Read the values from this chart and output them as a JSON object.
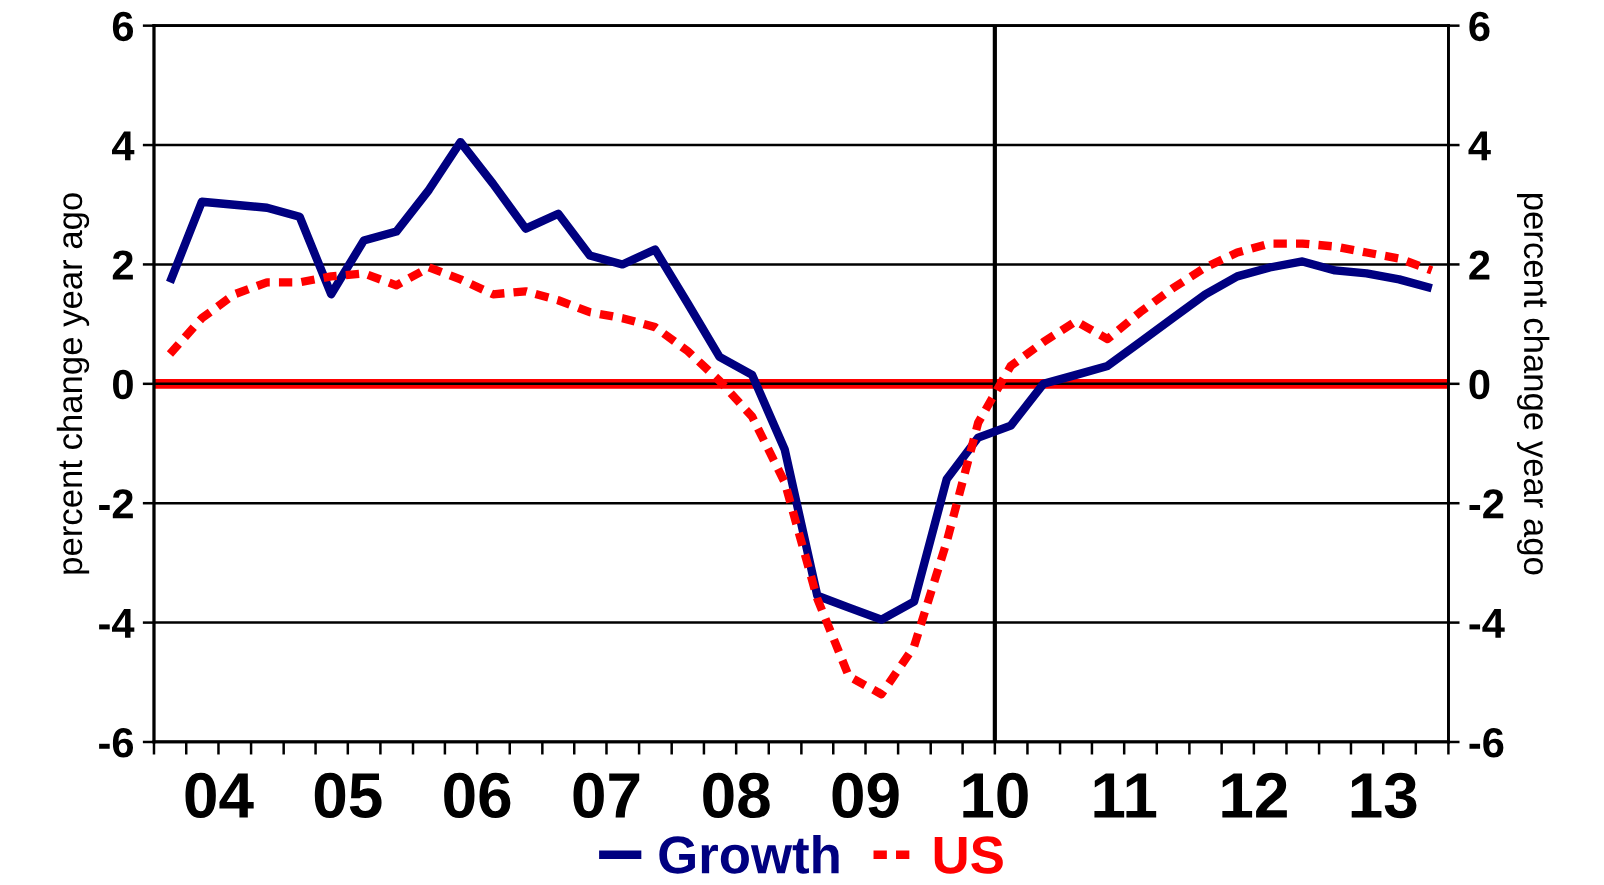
{
  "chart_data": {
    "type": "line",
    "ylabel": "percent change year ago",
    "y2label": "percent change year ago",
    "x": [
      "2004-02-15",
      "2004-05-15",
      "2004-08-15",
      "2004-11-15",
      "2005-02-15",
      "2005-05-15",
      "2005-08-15",
      "2005-11-15",
      "2006-02-15",
      "2006-05-15",
      "2006-08-15",
      "2006-11-15",
      "2007-02-15",
      "2007-05-15",
      "2007-08-15",
      "2007-11-15",
      "2008-02-15",
      "2008-05-15",
      "2008-08-15",
      "2008-11-15",
      "2009-02-15",
      "2009-05-15",
      "2009-08-15",
      "2009-11-15",
      "2010-02-15",
      "2010-05-15",
      "2010-08-15",
      "2010-11-15",
      "2011-02-15",
      "2011-05-15",
      "2011-08-15",
      "2011-11-15",
      "2012-02-15",
      "2012-05-15",
      "2012-08-15",
      "2012-11-15",
      "2013-02-15",
      "2013-05-15",
      "2013-08-15",
      "2013-11-15"
    ],
    "series": [
      {
        "name": "Growth",
        "color": "#000080",
        "line_style": "solid",
        "values": [
          1.7,
          3.05,
          3.0,
          2.95,
          2.8,
          1.5,
          2.4,
          2.55,
          3.25,
          4.05,
          3.35,
          2.6,
          2.85,
          2.15,
          2.0,
          2.25,
          1.35,
          0.45,
          0.15,
          -1.1,
          -3.55,
          -3.75,
          -3.95,
          -3.65,
          -1.6,
          -0.9,
          -0.7,
          0.0,
          0.15,
          0.3,
          0.7,
          1.1,
          1.5,
          1.8,
          1.95,
          2.05,
          1.9,
          1.85,
          1.75,
          1.6
        ]
      },
      {
        "name": "US",
        "color": "#ff0000",
        "line_style": "dotted",
        "values": [
          0.5,
          1.1,
          1.5,
          1.7,
          1.7,
          1.8,
          1.85,
          1.65,
          1.95,
          1.75,
          1.5,
          1.55,
          1.4,
          1.2,
          1.1,
          0.95,
          0.55,
          0.05,
          -0.55,
          -1.65,
          -3.6,
          -4.9,
          -5.2,
          -4.4,
          -2.65,
          -0.65,
          0.3,
          0.7,
          1.05,
          0.75,
          1.2,
          1.6,
          1.95,
          2.2,
          2.35,
          2.35,
          2.3,
          2.2,
          2.1,
          1.9
        ]
      }
    ],
    "xlim": [
      "2004-01-01",
      "2014-01-01"
    ],
    "xticks": [
      {
        "value": "2004-01-01",
        "label": null
      },
      {
        "value": "2004-04-01",
        "label": null
      },
      {
        "value": "2004-07-01",
        "label": "04"
      },
      {
        "value": "2004-10-01",
        "label": null
      },
      {
        "value": "2005-01-01",
        "label": null
      },
      {
        "value": "2005-04-01",
        "label": null
      },
      {
        "value": "2005-07-01",
        "label": "05"
      },
      {
        "value": "2005-10-01",
        "label": null
      },
      {
        "value": "2006-01-01",
        "label": null
      },
      {
        "value": "2006-04-01",
        "label": null
      },
      {
        "value": "2006-07-01",
        "label": "06"
      },
      {
        "value": "2006-10-01",
        "label": null
      },
      {
        "value": "2007-01-01",
        "label": null
      },
      {
        "value": "2007-04-01",
        "label": null
      },
      {
        "value": "2007-07-01",
        "label": "07"
      },
      {
        "value": "2007-10-01",
        "label": null
      },
      {
        "value": "2008-01-01",
        "label": null
      },
      {
        "value": "2008-04-01",
        "label": null
      },
      {
        "value": "2008-07-01",
        "label": "08"
      },
      {
        "value": "2008-10-01",
        "label": null
      },
      {
        "value": "2009-01-01",
        "label": null
      },
      {
        "value": "2009-04-01",
        "label": null
      },
      {
        "value": "2009-07-01",
        "label": "09"
      },
      {
        "value": "2009-10-01",
        "label": null
      },
      {
        "value": "2010-01-01",
        "label": null
      },
      {
        "value": "2010-04-01",
        "label": null
      },
      {
        "value": "2010-07-01",
        "label": "10"
      },
      {
        "value": "2010-10-01",
        "label": null
      },
      {
        "value": "2011-01-01",
        "label": null
      },
      {
        "value": "2011-04-01",
        "label": null
      },
      {
        "value": "2011-07-01",
        "label": "11"
      },
      {
        "value": "2011-10-01",
        "label": null
      },
      {
        "value": "2012-01-01",
        "label": null
      },
      {
        "value": "2012-04-01",
        "label": null
      },
      {
        "value": "2012-07-01",
        "label": "12"
      },
      {
        "value": "2012-10-01",
        "label": null
      },
      {
        "value": "2013-01-01",
        "label": null
      },
      {
        "value": "2013-04-01",
        "label": null
      },
      {
        "value": "2013-07-01",
        "label": "13"
      },
      {
        "value": "2013-10-01",
        "label": null
      },
      {
        "value": "2014-01-01",
        "label": null
      }
    ],
    "ylim": [
      -6,
      6
    ],
    "yticks": [
      -6,
      -4,
      -2,
      0,
      2,
      4,
      6
    ],
    "y2lim": [
      -6,
      6
    ],
    "y2ticks": [
      -6,
      -4,
      -2,
      0,
      2,
      4,
      6
    ],
    "ref_lines": [
      {
        "axis": "y",
        "value": 0,
        "color": "#ff0000"
      },
      {
        "axis": "x",
        "value": "2010-07-01",
        "color": "#000000"
      }
    ],
    "grid": "y",
    "legend": "bottom"
  }
}
